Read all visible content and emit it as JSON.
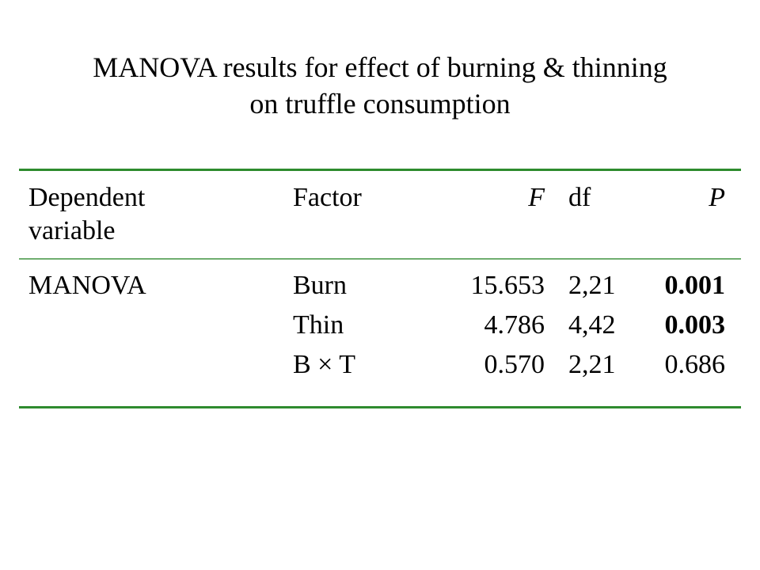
{
  "title": {
    "line1": "MANOVA results for effect of burning & thinning",
    "line2": "on truffle consumption"
  },
  "table": {
    "headers": {
      "dependent_line1": "Dependent",
      "dependent_line2": "variable",
      "factor": "Factor",
      "f": "F",
      "df": "df",
      "p": "P"
    },
    "dependent_variable": "MANOVA",
    "rows": [
      {
        "factor": "Burn",
        "f": "15.653",
        "df": "2,21",
        "p": "0.001",
        "p_bold": true
      },
      {
        "factor": "Thin",
        "f": "4.786",
        "df": "4,42",
        "p": "0.003",
        "p_bold": true
      },
      {
        "factor": "B × T",
        "f": "0.570",
        "df": "2,21",
        "p": "0.686",
        "p_bold": false
      }
    ]
  },
  "colors": {
    "rule": "#2e8b2e",
    "rule_light": "#6fae6f"
  }
}
